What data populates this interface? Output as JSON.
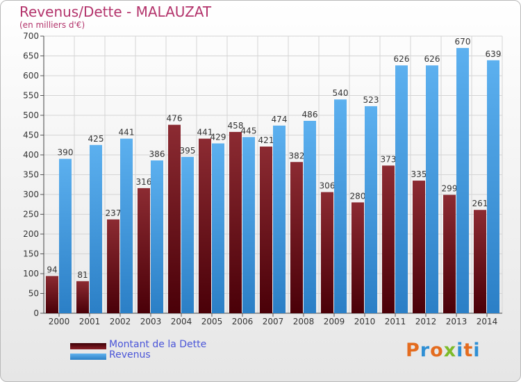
{
  "header": {
    "title": "Revenus/Dette - MALAUZAT",
    "subtitle": "(en milliers d'€)"
  },
  "colors": {
    "dette": "#6b0f14",
    "revenus": "#3d95dd",
    "title": "#b3336b",
    "legend_text": "#4a55d8",
    "grid": "#d4d4d4"
  },
  "legend": {
    "items": [
      {
        "label": "Montant de la Dette",
        "color": "#6b0f14"
      },
      {
        "label": "Revenus",
        "color": "#3d95dd"
      }
    ]
  },
  "logo": {
    "text": "Proxiti",
    "letter_colors": [
      "#e46c1f",
      "#2f8fd4",
      "#e46c1f",
      "#7dbb2a",
      "#2f8fd4",
      "#e46c1f",
      "#2f8fd4"
    ]
  },
  "chart_data": {
    "type": "bar",
    "title": "Revenus/Dette - MALAUZAT",
    "subtitle": "(en milliers d'€)",
    "categories": [
      "2000",
      "2001",
      "2002",
      "2003",
      "2004",
      "2005",
      "2006",
      "2007",
      "2008",
      "2009",
      "2010",
      "2011",
      "2012",
      "2013",
      "2014"
    ],
    "series": [
      {
        "name": "Montant de la Dette",
        "color": "#6b0f14",
        "values": [
          94,
          81,
          237,
          316,
          476,
          441,
          458,
          421,
          382,
          306,
          280,
          373,
          335,
          299,
          261
        ]
      },
      {
        "name": "Revenus",
        "color": "#3d95dd",
        "values": [
          390,
          425,
          441,
          386,
          395,
          429,
          445,
          474,
          486,
          540,
          523,
          626,
          626,
          670,
          639
        ]
      }
    ],
    "ylim": [
      0,
      700
    ],
    "ytick_step": 50,
    "grid": true,
    "legend_position": "bottom-left"
  }
}
